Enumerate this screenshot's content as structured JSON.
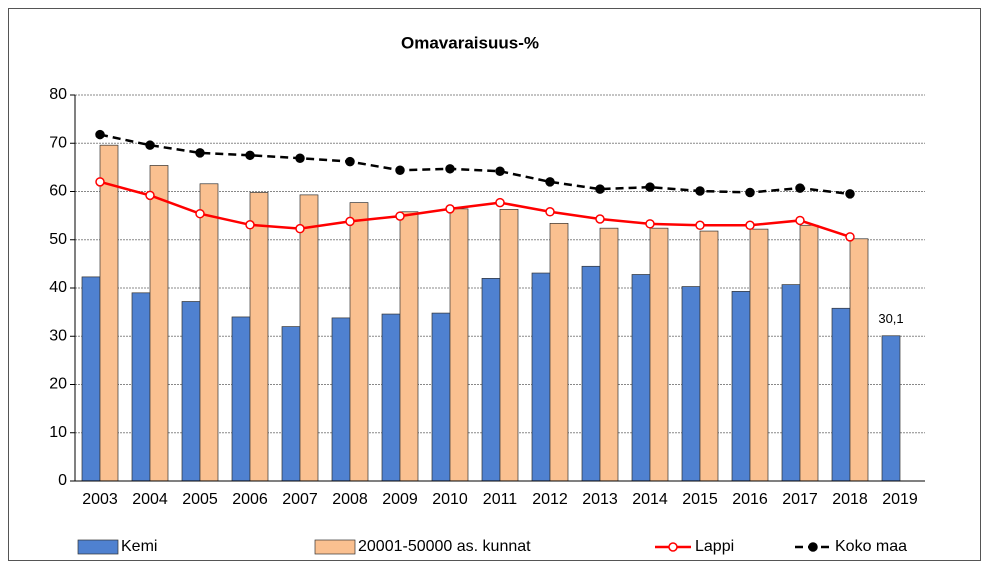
{
  "chart_data": {
    "type": "bar_line",
    "title": "Omavaraisuus-%",
    "categories": [
      "2003",
      "2004",
      "2005",
      "2006",
      "2007",
      "2008",
      "2009",
      "2010",
      "2011",
      "2012",
      "2013",
      "2014",
      "2015",
      "2016",
      "2017",
      "2018",
      "2019"
    ],
    "series": [
      {
        "name": "Kemi",
        "kind": "bar",
        "color": "#4f81d0",
        "values": [
          42.3,
          39,
          37.2,
          34,
          32,
          33.8,
          34.6,
          34.8,
          42,
          43.1,
          44.5,
          42.8,
          40.3,
          39.3,
          40.7,
          35.8,
          30.1
        ],
        "value_labels": [
          null,
          null,
          null,
          null,
          null,
          null,
          null,
          null,
          null,
          null,
          null,
          null,
          null,
          null,
          null,
          null,
          "30,1"
        ]
      },
      {
        "name": "20001-50000 as. kunnat",
        "kind": "bar",
        "color": "#fac090",
        "values": [
          69.6,
          65.4,
          61.6,
          59.8,
          59.3,
          57.7,
          55.8,
          56.4,
          56.3,
          53.4,
          52.4,
          52.4,
          51.8,
          52.2,
          53,
          50.2,
          null
        ]
      },
      {
        "name": "Lappi",
        "kind": "line",
        "color": "#ff0000",
        "values": [
          62,
          59.2,
          55.4,
          53.1,
          52.3,
          53.8,
          54.9,
          56.4,
          57.7,
          55.8,
          54.3,
          53.3,
          53,
          53,
          54,
          50.6,
          null
        ]
      },
      {
        "name": "Koko maa",
        "kind": "line",
        "color": "#000000",
        "dashed": true,
        "values": [
          71.8,
          69.6,
          68,
          67.5,
          66.9,
          66.2,
          64.4,
          64.7,
          64.2,
          62,
          60.5,
          60.9,
          60.1,
          59.8,
          60.7,
          59.5,
          null
        ]
      }
    ],
    "ylim": [
      0,
      80
    ],
    "yticks": [
      0,
      10,
      20,
      30,
      40,
      50,
      60,
      70,
      80
    ],
    "grid": true,
    "legend": "bottom"
  }
}
